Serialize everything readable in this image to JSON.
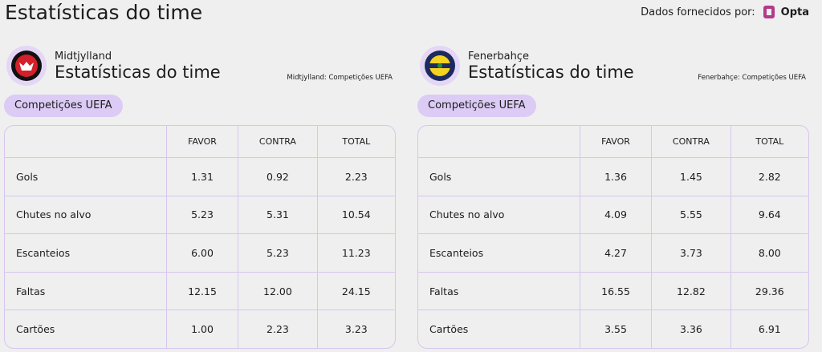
{
  "header": {
    "title": "Estatísticas do time",
    "provider_label": "Dados fornecidos por:",
    "provider_name": "Opta"
  },
  "panels": [
    {
      "team": "Midtjylland",
      "heading": "Estatísticas do time",
      "source": "Midtjylland: Competições UEFA",
      "tab": "Competições UEFA",
      "table": {
        "columns": [
          "FAVOR",
          "CONTRA",
          "TOTAL"
        ],
        "rows": [
          {
            "label": "Gols",
            "values": [
              "1.31",
              "0.92",
              "2.23"
            ]
          },
          {
            "label": "Chutes no alvo",
            "values": [
              "5.23",
              "5.31",
              "10.54"
            ]
          },
          {
            "label": "Escanteios",
            "values": [
              "6.00",
              "5.23",
              "11.23"
            ]
          },
          {
            "label": "Faltas",
            "values": [
              "12.15",
              "12.00",
              "24.15"
            ]
          },
          {
            "label": "Cartões",
            "values": [
              "1.00",
              "2.23",
              "3.23"
            ]
          }
        ]
      }
    },
    {
      "team": "Fenerbahçe",
      "heading": "Estatísticas do time",
      "source": "Fenerbahçe: Competições UEFA",
      "tab": "Competições UEFA",
      "table": {
        "columns": [
          "FAVOR",
          "CONTRA",
          "TOTAL"
        ],
        "rows": [
          {
            "label": "Gols",
            "values": [
              "1.36",
              "1.45",
              "2.82"
            ]
          },
          {
            "label": "Chutes no alvo",
            "values": [
              "4.09",
              "5.55",
              "9.64"
            ]
          },
          {
            "label": "Escanteios",
            "values": [
              "4.27",
              "3.73",
              "8.00"
            ]
          },
          {
            "label": "Faltas",
            "values": [
              "16.55",
              "12.82",
              "29.36"
            ]
          },
          {
            "label": "Cartões",
            "values": [
              "3.55",
              "3.36",
              "6.91"
            ]
          }
        ]
      }
    }
  ]
}
